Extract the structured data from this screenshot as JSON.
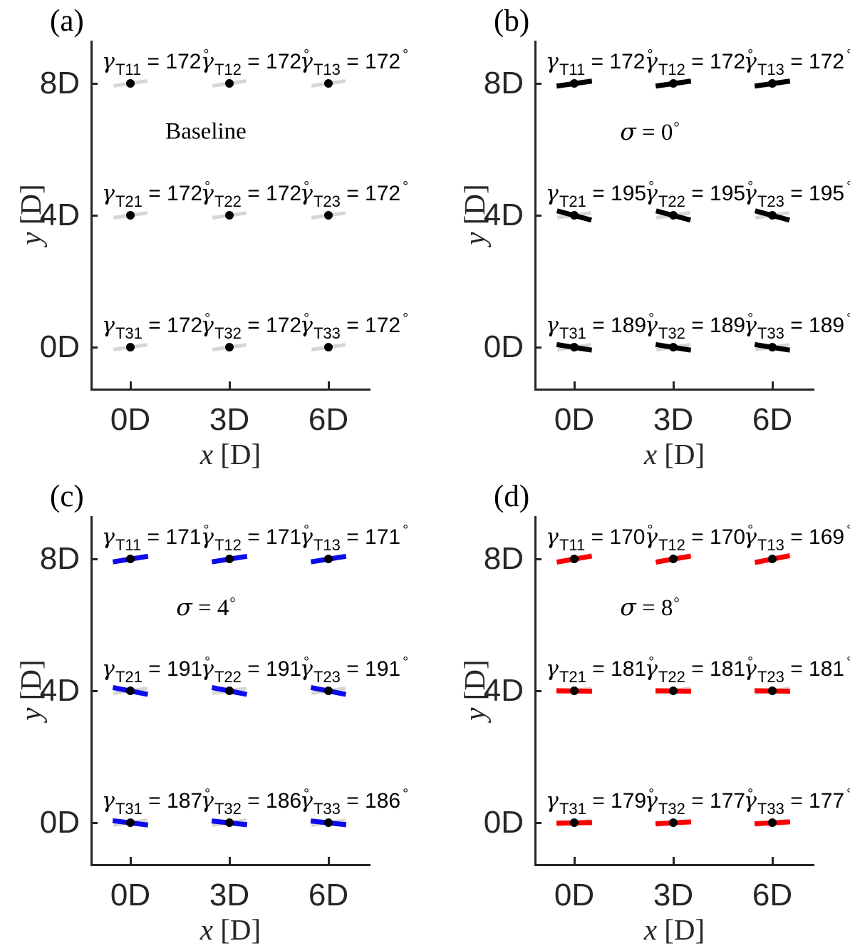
{
  "figure": {
    "xlabel": "x [D]",
    "ylabel": "y [D]",
    "x_tick_labels": [
      "0D",
      "3D",
      "6D"
    ],
    "y_tick_labels_top_to_bottom": [
      "8D",
      "4D",
      "0D"
    ],
    "baseline_overlay_gamma_deg": 172,
    "colors": {
      "baseline_gray": "#d6d6d6",
      "panel_b_black": "#000000",
      "panel_c_blue": "#0b0bee",
      "panel_d_red": "#fb0000",
      "axis": "#262626",
      "marker_dot": "#000000"
    },
    "gamma_symbol": "γ",
    "degree_symbol": "°",
    "equals_text": " = "
  },
  "chart_data": [
    {
      "type": "scatter",
      "panel": "(a)",
      "annotation": {
        "text": "Baseline"
      },
      "line_color": "#d6d6d6",
      "show_baseline_overlay": false,
      "xlabel": "x [D]",
      "ylabel": "y [D]",
      "x_ticks": [
        "0D",
        "3D",
        "6D"
      ],
      "y_ticks": [
        "8D",
        "4D",
        "0D"
      ],
      "xlim": [
        -1.2,
        7.3
      ],
      "ylim": [
        -1.3,
        9.3
      ],
      "grid": false,
      "points": [
        {
          "turbine": "T11",
          "x": 0,
          "y": 8,
          "gamma_deg": 172
        },
        {
          "turbine": "T12",
          "x": 3,
          "y": 8,
          "gamma_deg": 172
        },
        {
          "turbine": "T13",
          "x": 6,
          "y": 8,
          "gamma_deg": 172
        },
        {
          "turbine": "T21",
          "x": 0,
          "y": 4,
          "gamma_deg": 172
        },
        {
          "turbine": "T22",
          "x": 3,
          "y": 4,
          "gamma_deg": 172
        },
        {
          "turbine": "T23",
          "x": 6,
          "y": 4,
          "gamma_deg": 172
        },
        {
          "turbine": "T31",
          "x": 0,
          "y": 0,
          "gamma_deg": 172
        },
        {
          "turbine": "T32",
          "x": 3,
          "y": 0,
          "gamma_deg": 172
        },
        {
          "turbine": "T33",
          "x": 6,
          "y": 0,
          "gamma_deg": 172
        }
      ]
    },
    {
      "type": "scatter",
      "panel": "(b)",
      "annotation": {
        "sigma": "σ",
        "value": "0",
        "degree": "°"
      },
      "line_color": "#000000",
      "show_baseline_overlay": true,
      "xlabel": "x [D]",
      "ylabel": "y [D]",
      "x_ticks": [
        "0D",
        "3D",
        "6D"
      ],
      "y_ticks": [
        "8D",
        "4D",
        "0D"
      ],
      "xlim": [
        -1.2,
        7.3
      ],
      "ylim": [
        -1.3,
        9.3
      ],
      "grid": false,
      "points": [
        {
          "turbine": "T11",
          "x": 0,
          "y": 8,
          "gamma_deg": 172
        },
        {
          "turbine": "T12",
          "x": 3,
          "y": 8,
          "gamma_deg": 172
        },
        {
          "turbine": "T13",
          "x": 6,
          "y": 8,
          "gamma_deg": 172
        },
        {
          "turbine": "T21",
          "x": 0,
          "y": 4,
          "gamma_deg": 195
        },
        {
          "turbine": "T22",
          "x": 3,
          "y": 4,
          "gamma_deg": 195
        },
        {
          "turbine": "T23",
          "x": 6,
          "y": 4,
          "gamma_deg": 195
        },
        {
          "turbine": "T31",
          "x": 0,
          "y": 0,
          "gamma_deg": 189
        },
        {
          "turbine": "T32",
          "x": 3,
          "y": 0,
          "gamma_deg": 189
        },
        {
          "turbine": "T33",
          "x": 6,
          "y": 0,
          "gamma_deg": 189
        }
      ]
    },
    {
      "type": "scatter",
      "panel": "(c)",
      "annotation": {
        "sigma": "σ",
        "value": "4",
        "degree": "°"
      },
      "line_color": "#0b0bee",
      "show_baseline_overlay": true,
      "xlabel": "x [D]",
      "ylabel": "y [D]",
      "x_ticks": [
        "0D",
        "3D",
        "6D"
      ],
      "y_ticks": [
        "8D",
        "4D",
        "0D"
      ],
      "xlim": [
        -1.2,
        7.3
      ],
      "ylim": [
        -1.3,
        9.3
      ],
      "grid": false,
      "points": [
        {
          "turbine": "T11",
          "x": 0,
          "y": 8,
          "gamma_deg": 171
        },
        {
          "turbine": "T12",
          "x": 3,
          "y": 8,
          "gamma_deg": 171
        },
        {
          "turbine": "T13",
          "x": 6,
          "y": 8,
          "gamma_deg": 171
        },
        {
          "turbine": "T21",
          "x": 0,
          "y": 4,
          "gamma_deg": 191
        },
        {
          "turbine": "T22",
          "x": 3,
          "y": 4,
          "gamma_deg": 191
        },
        {
          "turbine": "T23",
          "x": 6,
          "y": 4,
          "gamma_deg": 191
        },
        {
          "turbine": "T31",
          "x": 0,
          "y": 0,
          "gamma_deg": 187
        },
        {
          "turbine": "T32",
          "x": 3,
          "y": 0,
          "gamma_deg": 186
        },
        {
          "turbine": "T33",
          "x": 6,
          "y": 0,
          "gamma_deg": 186
        }
      ]
    },
    {
      "type": "scatter",
      "panel": "(d)",
      "annotation": {
        "sigma": "σ",
        "value": "8",
        "degree": "°"
      },
      "line_color": "#fb0000",
      "show_baseline_overlay": true,
      "xlabel": "x [D]",
      "ylabel": "y [D]",
      "x_ticks": [
        "0D",
        "3D",
        "6D"
      ],
      "y_ticks": [
        "8D",
        "4D",
        "0D"
      ],
      "xlim": [
        -1.2,
        7.3
      ],
      "ylim": [
        -1.3,
        9.3
      ],
      "grid": false,
      "points": [
        {
          "turbine": "T11",
          "x": 0,
          "y": 8,
          "gamma_deg": 170
        },
        {
          "turbine": "T12",
          "x": 3,
          "y": 8,
          "gamma_deg": 170
        },
        {
          "turbine": "T13",
          "x": 6,
          "y": 8,
          "gamma_deg": 169
        },
        {
          "turbine": "T21",
          "x": 0,
          "y": 4,
          "gamma_deg": 181
        },
        {
          "turbine": "T22",
          "x": 3,
          "y": 4,
          "gamma_deg": 181
        },
        {
          "turbine": "T23",
          "x": 6,
          "y": 4,
          "gamma_deg": 181
        },
        {
          "turbine": "T31",
          "x": 0,
          "y": 0,
          "gamma_deg": 179
        },
        {
          "turbine": "T32",
          "x": 3,
          "y": 0,
          "gamma_deg": 177
        },
        {
          "turbine": "T33",
          "x": 6,
          "y": 0,
          "gamma_deg": 177
        }
      ]
    }
  ]
}
